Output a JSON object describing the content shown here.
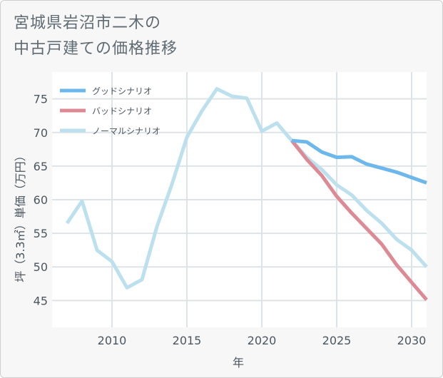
{
  "title_line1": "宮城県岩沼市二木の",
  "title_line2": "中古戸建ての価格推移",
  "chart_data": {
    "type": "line",
    "title": "宮城県岩沼市二木の中古戸建ての価格推移",
    "xlabel": "年",
    "ylabel": "坪（3.3㎡）単価（万円）",
    "xlim": [
      2006,
      2031
    ],
    "ylim": [
      41,
      79
    ],
    "xticks": [
      2010,
      2015,
      2020,
      2025,
      2030
    ],
    "yticks": [
      45,
      50,
      55,
      60,
      65,
      70,
      75
    ],
    "legend_position": "top-left",
    "grid": true,
    "series": [
      {
        "name": "グッドシナリオ",
        "color": "#6cb8ec",
        "x": [
          2022,
          2023,
          2024,
          2025,
          2026,
          2027,
          2028,
          2029,
          2030,
          2031
        ],
        "values": [
          68.8,
          68.6,
          67.1,
          66.3,
          66.4,
          65.3,
          64.7,
          64.1,
          63.3,
          62.5
        ]
      },
      {
        "name": "バッドシナリオ",
        "color": "#dd8a94",
        "x": [
          2022,
          2023,
          2024,
          2025,
          2026,
          2027,
          2028,
          2029,
          2030,
          2031
        ],
        "values": [
          68.8,
          66.0,
          63.6,
          60.5,
          58.0,
          55.7,
          53.4,
          50.3,
          47.7,
          45.1
        ]
      },
      {
        "name": "ノーマルシナリオ",
        "color": "#bde0ee",
        "x": [
          2007,
          2008,
          2009,
          2010,
          2011,
          2012,
          2013,
          2014,
          2015,
          2016,
          2017,
          2018,
          2019,
          2020,
          2021,
          2022,
          2023,
          2024,
          2025,
          2026,
          2027,
          2028,
          2029,
          2030,
          2031
        ],
        "values": [
          56.5,
          59.8,
          52.5,
          50.8,
          46.9,
          48.1,
          56.0,
          62.3,
          69.3,
          73.2,
          76.5,
          75.4,
          75.1,
          70.2,
          71.4,
          68.8,
          66.3,
          64.5,
          62.2,
          60.7,
          58.4,
          56.5,
          54.1,
          52.5,
          50.0
        ]
      }
    ]
  }
}
